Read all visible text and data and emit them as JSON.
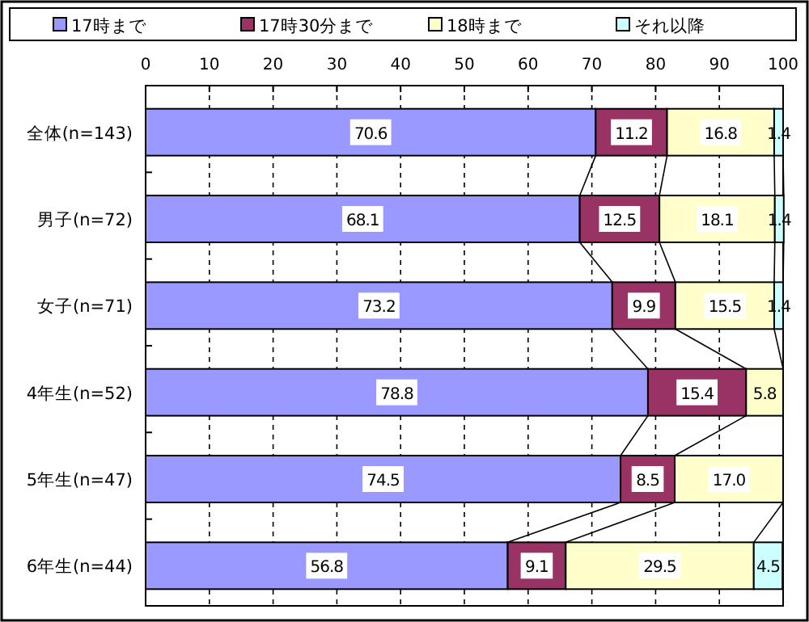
{
  "chart_data": {
    "type": "bar",
    "orientation": "horizontal",
    "stacked": true,
    "legend": "top",
    "grid": "x",
    "categories": [
      "全体(n=143)",
      "男子(n=72)",
      "女子(n=71)",
      "4年生(n=52)",
      "5年生(n=47)",
      "6年生(n=44)"
    ],
    "xlim": [
      0,
      100
    ],
    "xticks": [
      0,
      10,
      20,
      30,
      40,
      50,
      60,
      70,
      80,
      90,
      100
    ],
    "series": [
      {
        "name": "17時まで",
        "color": "#9999ff",
        "values": [
          70.6,
          68.1,
          73.2,
          78.8,
          74.5,
          56.8
        ],
        "value_labels": [
          "70.6",
          "68.1",
          "73.2",
          "78.8",
          "74.5",
          "56.8"
        ]
      },
      {
        "name": "17時30分まで",
        "color": "#993366",
        "values": [
          11.2,
          12.5,
          9.9,
          15.4,
          8.5,
          9.1
        ],
        "value_labels": [
          "11.2",
          "12.5",
          "9.9",
          "15.4",
          "8.5",
          "9.1"
        ]
      },
      {
        "name": "18時まで",
        "color": "#ffffcc",
        "values": [
          16.8,
          18.1,
          15.5,
          5.8,
          17.0,
          29.5
        ],
        "value_labels": [
          "16.8",
          "18.1",
          "15.5",
          "5.8",
          "17.0",
          "29.5"
        ]
      },
      {
        "name": "それ以降",
        "color": "#ccffff",
        "values": [
          1.4,
          1.4,
          1.4,
          null,
          null,
          4.5
        ],
        "value_labels": [
          "1.4",
          "1.4",
          "1.4",
          null,
          null,
          "4.5"
        ]
      }
    ]
  }
}
